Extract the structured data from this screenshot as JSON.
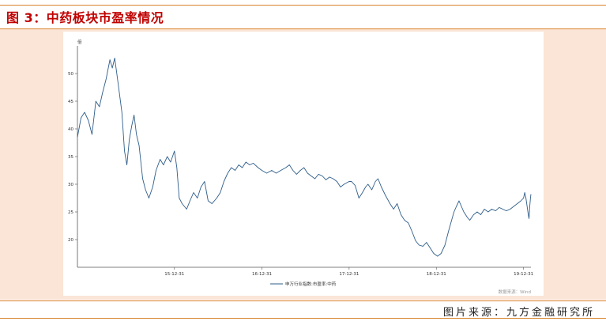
{
  "header": {
    "title": "图 3：中药板块市盈率情况"
  },
  "footer": {
    "source": "图片来源：九方金融研究所"
  },
  "colors": {
    "title": "#c00000",
    "rule": "#d9822b",
    "panel": "#fbe5d6",
    "line": "#2e5d8a"
  },
  "chart_data": {
    "type": "line",
    "title": "",
    "xlabel": "",
    "ylabel": "倍",
    "ylim": [
      15,
      55
    ],
    "yticks": [
      20,
      25,
      30,
      35,
      40,
      45,
      50
    ],
    "xlim": [
      "2014-11-20",
      "2020-01-31"
    ],
    "xticks": [
      {
        "label": "15-12-31",
        "date": "2015-12-31"
      },
      {
        "label": "16-12-31",
        "date": "2016-12-31"
      },
      {
        "label": "17-12-31",
        "date": "2017-12-31"
      },
      {
        "label": "18-12-31",
        "date": "2018-12-31"
      },
      {
        "label": "19-12-31",
        "date": "2019-12-31"
      }
    ],
    "legend": {
      "position": "bottom-center",
      "entries": [
        "申万行业指数:市盈率:中药"
      ]
    },
    "note": "数据来源：Wind",
    "grid": false,
    "series": [
      {
        "name": "申万行业指数:市盈率:中药",
        "points": [
          [
            "2014-11-20",
            38.5
          ],
          [
            "2014-12-05",
            42.0
          ],
          [
            "2014-12-20",
            43.0
          ],
          [
            "2015-01-05",
            41.5
          ],
          [
            "2015-01-20",
            39.0
          ],
          [
            "2015-02-05",
            45.0
          ],
          [
            "2015-02-20",
            44.0
          ],
          [
            "2015-03-05",
            46.5
          ],
          [
            "2015-03-20",
            49.0
          ],
          [
            "2015-04-05",
            52.5
          ],
          [
            "2015-04-15",
            51.0
          ],
          [
            "2015-04-25",
            52.8
          ],
          [
            "2015-05-10",
            48.0
          ],
          [
            "2015-05-25",
            43.0
          ],
          [
            "2015-06-05",
            36.0
          ],
          [
            "2015-06-15",
            33.5
          ],
          [
            "2015-06-25",
            38.0
          ],
          [
            "2015-07-05",
            40.5
          ],
          [
            "2015-07-15",
            42.5
          ],
          [
            "2015-07-25",
            39.0
          ],
          [
            "2015-08-05",
            37.0
          ],
          [
            "2015-08-20",
            31.0
          ],
          [
            "2015-09-01",
            29.0
          ],
          [
            "2015-09-15",
            27.5
          ],
          [
            "2015-10-01",
            29.5
          ],
          [
            "2015-10-15",
            32.5
          ],
          [
            "2015-11-01",
            34.5
          ],
          [
            "2015-11-15",
            33.5
          ],
          [
            "2015-12-01",
            35.0
          ],
          [
            "2015-12-15",
            34.0
          ],
          [
            "2015-12-31",
            36.0
          ],
          [
            "2016-01-10",
            33.0
          ],
          [
            "2016-01-20",
            27.5
          ],
          [
            "2016-02-01",
            26.5
          ],
          [
            "2016-02-20",
            25.5
          ],
          [
            "2016-03-05",
            27.0
          ],
          [
            "2016-03-20",
            28.5
          ],
          [
            "2016-04-05",
            27.5
          ],
          [
            "2016-04-20",
            29.5
          ],
          [
            "2016-05-05",
            30.5
          ],
          [
            "2016-05-20",
            27.0
          ],
          [
            "2016-06-05",
            26.5
          ],
          [
            "2016-06-25",
            27.5
          ],
          [
            "2016-07-10",
            28.5
          ],
          [
            "2016-07-25",
            30.5
          ],
          [
            "2016-08-10",
            32.0
          ],
          [
            "2016-08-25",
            33.0
          ],
          [
            "2016-09-10",
            32.5
          ],
          [
            "2016-09-25",
            33.5
          ],
          [
            "2016-10-10",
            33.0
          ],
          [
            "2016-10-25",
            34.0
          ],
          [
            "2016-11-10",
            33.5
          ],
          [
            "2016-11-25",
            33.8
          ],
          [
            "2016-12-15",
            33.0
          ],
          [
            "2016-12-31",
            32.5
          ],
          [
            "2017-01-20",
            32.0
          ],
          [
            "2017-02-10",
            32.5
          ],
          [
            "2017-03-01",
            32.0
          ],
          [
            "2017-03-20",
            32.5
          ],
          [
            "2017-04-10",
            33.0
          ],
          [
            "2017-04-25",
            33.5
          ],
          [
            "2017-05-10",
            32.5
          ],
          [
            "2017-05-25",
            31.8
          ],
          [
            "2017-06-10",
            32.5
          ],
          [
            "2017-06-25",
            33.0
          ],
          [
            "2017-07-10",
            32.0
          ],
          [
            "2017-07-25",
            31.5
          ],
          [
            "2017-08-10",
            31.0
          ],
          [
            "2017-08-25",
            31.8
          ],
          [
            "2017-09-10",
            31.5
          ],
          [
            "2017-09-25",
            30.8
          ],
          [
            "2017-10-10",
            31.3
          ],
          [
            "2017-10-25",
            31.0
          ],
          [
            "2017-11-10",
            30.5
          ],
          [
            "2017-11-25",
            29.5
          ],
          [
            "2017-12-10",
            30.0
          ],
          [
            "2017-12-31",
            30.5
          ],
          [
            "2018-01-10",
            30.5
          ],
          [
            "2018-01-25",
            29.8
          ],
          [
            "2018-02-10",
            27.5
          ],
          [
            "2018-02-25",
            28.5
          ],
          [
            "2018-03-10",
            29.5
          ],
          [
            "2018-03-20",
            30.0
          ],
          [
            "2018-04-05",
            29.0
          ],
          [
            "2018-04-20",
            30.5
          ],
          [
            "2018-05-01",
            31.0
          ],
          [
            "2018-05-15",
            29.5
          ],
          [
            "2018-06-01",
            28.0
          ],
          [
            "2018-06-20",
            26.5
          ],
          [
            "2018-07-05",
            25.5
          ],
          [
            "2018-07-20",
            26.5
          ],
          [
            "2018-08-05",
            24.5
          ],
          [
            "2018-08-20",
            23.5
          ],
          [
            "2018-09-05",
            23.0
          ],
          [
            "2018-09-20",
            21.5
          ],
          [
            "2018-10-05",
            19.8
          ],
          [
            "2018-10-20",
            19.0
          ],
          [
            "2018-11-05",
            18.8
          ],
          [
            "2018-11-20",
            19.5
          ],
          [
            "2018-12-05",
            18.5
          ],
          [
            "2018-12-20",
            17.5
          ],
          [
            "2019-01-05",
            17.0
          ],
          [
            "2019-01-20",
            17.5
          ],
          [
            "2019-02-05",
            19.0
          ],
          [
            "2019-02-20",
            21.5
          ],
          [
            "2019-03-05",
            23.5
          ],
          [
            "2019-03-15",
            25.0
          ],
          [
            "2019-03-25",
            26.0
          ],
          [
            "2019-04-05",
            27.0
          ],
          [
            "2019-04-15",
            26.0
          ],
          [
            "2019-04-25",
            25.0
          ],
          [
            "2019-05-10",
            24.0
          ],
          [
            "2019-05-20",
            23.5
          ],
          [
            "2019-06-05",
            24.5
          ],
          [
            "2019-06-20",
            25.0
          ],
          [
            "2019-07-05",
            24.5
          ],
          [
            "2019-07-20",
            25.5
          ],
          [
            "2019-08-05",
            25.0
          ],
          [
            "2019-08-20",
            25.5
          ],
          [
            "2019-09-05",
            25.2
          ],
          [
            "2019-09-20",
            25.8
          ],
          [
            "2019-10-05",
            25.5
          ],
          [
            "2019-10-20",
            25.2
          ],
          [
            "2019-11-05",
            25.5
          ],
          [
            "2019-11-20",
            26.0
          ],
          [
            "2019-12-05",
            26.5
          ],
          [
            "2019-12-20",
            27.0
          ],
          [
            "2019-12-31",
            27.5
          ],
          [
            "2020-01-05",
            28.5
          ],
          [
            "2020-01-10",
            27.5
          ],
          [
            "2020-01-15",
            26.0
          ],
          [
            "2020-01-20",
            24.5
          ],
          [
            "2020-01-23",
            23.8
          ],
          [
            "2020-01-26",
            26.0
          ],
          [
            "2020-01-29",
            27.5
          ],
          [
            "2020-01-31",
            28.2
          ]
        ]
      }
    ]
  }
}
